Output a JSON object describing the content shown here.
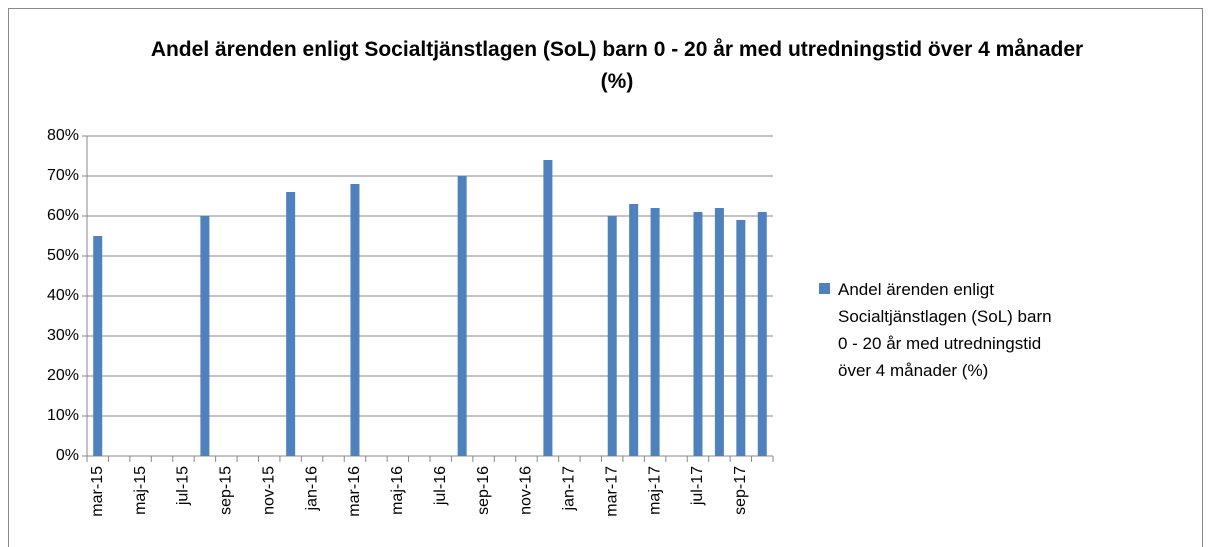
{
  "chart_data": {
    "type": "bar",
    "title": "Andel ärenden enligt Socialtjänstlagen (SoL) barn 0 - 20 år med utredningstid över 4 månader (%)",
    "categories": [
      "mar-15",
      null,
      "maj-15",
      null,
      "jul-15",
      null,
      "sep-15",
      null,
      "nov-15",
      null,
      "jan-16",
      null,
      "mar-16",
      null,
      "maj-16",
      null,
      "jul-16",
      null,
      "sep-16",
      null,
      "nov-16",
      null,
      "jan-17",
      null,
      "mar-17",
      null,
      "maj-17",
      null,
      "jul-17",
      null,
      "sep-17",
      null
    ],
    "series": [
      {
        "name": "Andel ärenden enligt Socialtjänstlagen (SoL) barn 0 - 20 år med utredningstid över 4 månader (%)",
        "color": "#4f81bd",
        "values": [
          55,
          null,
          null,
          null,
          null,
          60,
          null,
          null,
          null,
          66,
          null,
          null,
          68,
          null,
          null,
          null,
          null,
          70,
          null,
          null,
          null,
          74,
          null,
          null,
          60,
          63,
          62,
          null,
          61,
          62,
          59,
          61
        ]
      }
    ],
    "ylim": [
      0,
      80
    ],
    "yticks": [
      {
        "value": 0,
        "label": "0%"
      },
      {
        "value": 10,
        "label": "10%"
      },
      {
        "value": 20,
        "label": "20%"
      },
      {
        "value": 30,
        "label": "30%"
      },
      {
        "value": 40,
        "label": "40%"
      },
      {
        "value": 50,
        "label": "50%"
      },
      {
        "value": 60,
        "label": "60%"
      },
      {
        "value": 70,
        "label": "70%"
      },
      {
        "value": 80,
        "label": "80%"
      }
    ],
    "grid": true,
    "legend": "right"
  }
}
